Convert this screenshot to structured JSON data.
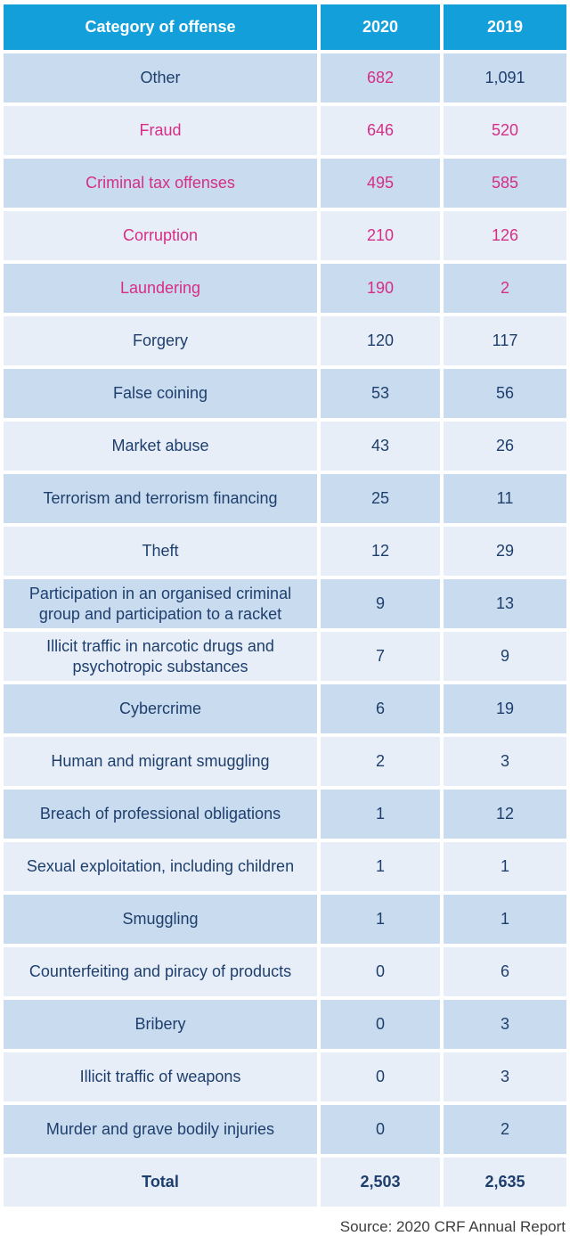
{
  "header": {
    "category": "Category of offense",
    "col_2020": "2020",
    "col_2019": "2019"
  },
  "rows": [
    {
      "label": "Other",
      "v2020": "682",
      "v2019": "1,091",
      "label_pink": false,
      "v2020_pink": true,
      "v2019_pink": false
    },
    {
      "label": "Fraud",
      "v2020": "646",
      "v2019": "520",
      "label_pink": true,
      "v2020_pink": true,
      "v2019_pink": true
    },
    {
      "label": "Criminal tax offenses",
      "v2020": "495",
      "v2019": "585",
      "label_pink": true,
      "v2020_pink": true,
      "v2019_pink": true
    },
    {
      "label": "Corruption",
      "v2020": "210",
      "v2019": "126",
      "label_pink": true,
      "v2020_pink": true,
      "v2019_pink": true
    },
    {
      "label": "Laundering",
      "v2020": "190",
      "v2019": "2",
      "label_pink": true,
      "v2020_pink": true,
      "v2019_pink": true
    },
    {
      "label": "Forgery",
      "v2020": "120",
      "v2019": "117",
      "label_pink": false,
      "v2020_pink": false,
      "v2019_pink": false
    },
    {
      "label": "False coining",
      "v2020": "53",
      "v2019": "56",
      "label_pink": false,
      "v2020_pink": false,
      "v2019_pink": false
    },
    {
      "label": "Market abuse",
      "v2020": "43",
      "v2019": "26",
      "label_pink": false,
      "v2020_pink": false,
      "v2019_pink": false
    },
    {
      "label": "Terrorism and terrorism financing",
      "v2020": "25",
      "v2019": "11",
      "label_pink": false,
      "v2020_pink": false,
      "v2019_pink": false
    },
    {
      "label": "Theft",
      "v2020": "12",
      "v2019": "29",
      "label_pink": false,
      "v2020_pink": false,
      "v2019_pink": false
    },
    {
      "label": "Participation in an organised criminal group and participation to a racket",
      "v2020": "9",
      "v2019": "13",
      "label_pink": false,
      "v2020_pink": false,
      "v2019_pink": false
    },
    {
      "label": "Illicit traffic in narcotic drugs and psychotropic substances",
      "v2020": "7",
      "v2019": "9",
      "label_pink": false,
      "v2020_pink": false,
      "v2019_pink": false
    },
    {
      "label": "Cybercrime",
      "v2020": "6",
      "v2019": "19",
      "label_pink": false,
      "v2020_pink": false,
      "v2019_pink": false
    },
    {
      "label": "Human and migrant smuggling",
      "v2020": "2",
      "v2019": "3",
      "label_pink": false,
      "v2020_pink": false,
      "v2019_pink": false
    },
    {
      "label": "Breach of professional obligations",
      "v2020": "1",
      "v2019": "12",
      "label_pink": false,
      "v2020_pink": false,
      "v2019_pink": false
    },
    {
      "label": "Sexual exploitation, including children",
      "v2020": "1",
      "v2019": "1",
      "label_pink": false,
      "v2020_pink": false,
      "v2019_pink": false
    },
    {
      "label": "Smuggling",
      "v2020": "1",
      "v2019": "1",
      "label_pink": false,
      "v2020_pink": false,
      "v2019_pink": false
    },
    {
      "label": "Counterfeiting and piracy of products",
      "v2020": "0",
      "v2019": "6",
      "label_pink": false,
      "v2020_pink": false,
      "v2019_pink": false
    },
    {
      "label": "Bribery",
      "v2020": "0",
      "v2019": "3",
      "label_pink": false,
      "v2020_pink": false,
      "v2019_pink": false
    },
    {
      "label": "Illicit traffic of weapons",
      "v2020": "0",
      "v2019": "3",
      "label_pink": false,
      "v2020_pink": false,
      "v2019_pink": false
    },
    {
      "label": "Murder and grave bodily injuries",
      "v2020": "0",
      "v2019": "2",
      "label_pink": false,
      "v2020_pink": false,
      "v2019_pink": false
    }
  ],
  "total": {
    "label": "Total",
    "v2020": "2,503",
    "v2019": "2,635"
  },
  "source_note": "Source: 2020 CRF Annual Report",
  "colors": {
    "header_bg": "#129fda",
    "header_text": "#ffffff",
    "row_dark_bg": "#c9dbee",
    "row_light_bg": "#e7eef8",
    "navy_text": "#1e3f6d",
    "pink_text": "#d62e87",
    "source_text": "#3d3d3d"
  },
  "chart_data": {
    "type": "table",
    "title": "",
    "columns": [
      "Category of offense",
      "2020",
      "2019"
    ],
    "rows": [
      [
        "Other",
        682,
        1091
      ],
      [
        "Fraud",
        646,
        520
      ],
      [
        "Criminal tax offenses",
        495,
        585
      ],
      [
        "Corruption",
        210,
        126
      ],
      [
        "Laundering",
        190,
        2
      ],
      [
        "Forgery",
        120,
        117
      ],
      [
        "False coining",
        53,
        56
      ],
      [
        "Market abuse",
        43,
        26
      ],
      [
        "Terrorism and terrorism financing",
        25,
        11
      ],
      [
        "Theft",
        12,
        29
      ],
      [
        "Participation in an organised criminal group and participation to a racket",
        9,
        13
      ],
      [
        "Illicit traffic in narcotic drugs and psychotropic substances",
        7,
        9
      ],
      [
        "Cybercrime",
        6,
        19
      ],
      [
        "Human and migrant smuggling",
        2,
        3
      ],
      [
        "Breach of professional obligations",
        1,
        12
      ],
      [
        "Sexual exploitation, including children",
        1,
        1
      ],
      [
        "Smuggling",
        1,
        1
      ],
      [
        "Counterfeiting and piracy of products",
        0,
        6
      ],
      [
        "Bribery",
        0,
        3
      ],
      [
        "Illicit traffic of weapons",
        0,
        3
      ],
      [
        "Murder and grave bodily injuries",
        0,
        2
      ]
    ],
    "total_row": [
      "Total",
      2503,
      2635
    ],
    "source": "Source: 2020 CRF Annual Report",
    "highlight_note": "2020 values for top five rows and labels of rows 2-5 are magenta"
  }
}
